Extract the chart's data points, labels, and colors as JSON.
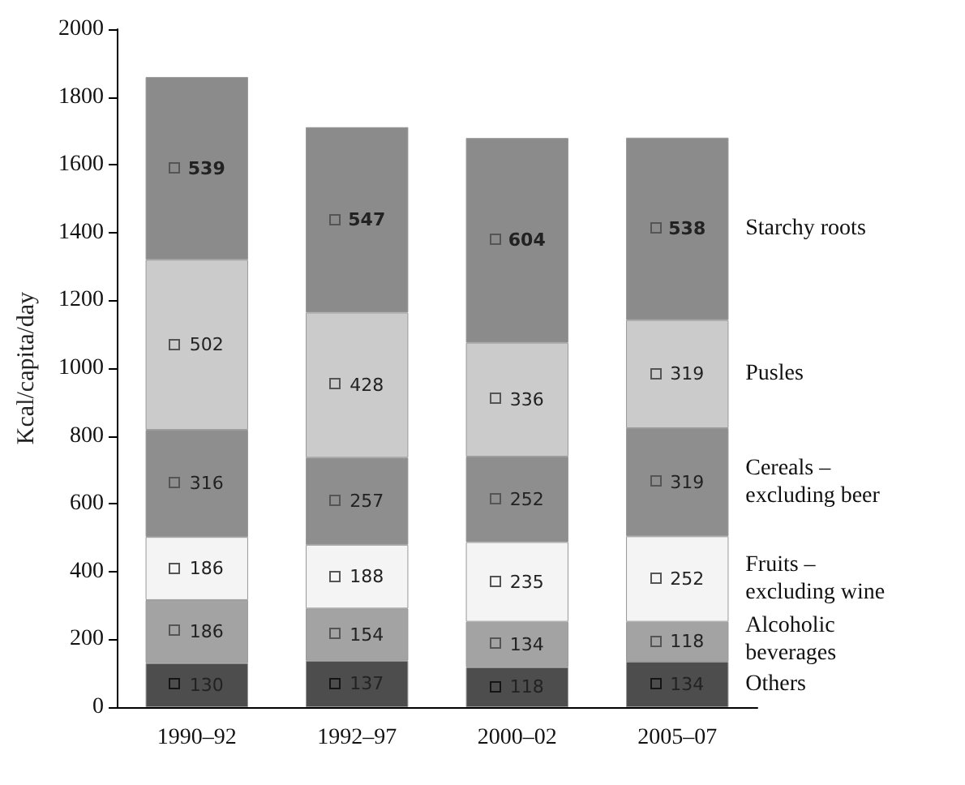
{
  "chart_data": {
    "type": "bar",
    "stacked": true,
    "ylabel": "Kcal/capita/day",
    "categories": [
      "1990–92",
      "1992–97",
      "2000–02",
      "2005–07"
    ],
    "ylim": [
      0,
      2000
    ],
    "yticks": [
      0,
      200,
      400,
      600,
      800,
      1000,
      1200,
      1400,
      1600,
      1800,
      2000
    ],
    "grid": false,
    "data_labels": true,
    "series": [
      {
        "name": "Others",
        "color": "#4d4d4d",
        "values": [
          130,
          137,
          118,
          134
        ]
      },
      {
        "name": "Alcoholic beverages",
        "color": "#a3a3a3",
        "values": [
          186,
          154,
          134,
          118
        ]
      },
      {
        "name": "Fruits – excluding wine",
        "color": "#f4f4f4",
        "values": [
          186,
          188,
          235,
          252
        ]
      },
      {
        "name": "Cereals – excluding beer",
        "color": "#8e8e8e",
        "values": [
          316,
          257,
          252,
          319
        ]
      },
      {
        "name": "Pusles",
        "color": "#cbcbcb",
        "values": [
          502,
          428,
          336,
          319
        ]
      },
      {
        "name": "Starchy roots",
        "color": "#8b8b8b",
        "values": [
          539,
          547,
          604,
          538
        ]
      }
    ]
  }
}
